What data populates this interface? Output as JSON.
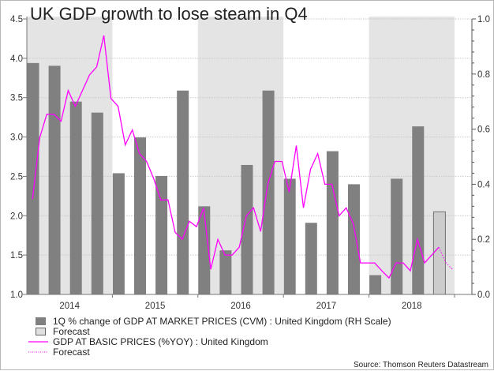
{
  "chart_data": {
    "type": "bar",
    "title": "UK GDP growth to lose steam in Q4",
    "source": "Source: Thomson Reuters Datastream",
    "x_axis": {
      "categories": [
        "2014",
        "2015",
        "2016",
        "2017",
        "2018"
      ],
      "shaded_years": [
        "2014",
        "2016",
        "2018"
      ]
    },
    "left_axis": {
      "ylim": [
        1.0,
        4.5
      ],
      "ticks": [
        "1.0",
        "1.5",
        "2.0",
        "2.5",
        "3.0",
        "3.5",
        "4.0",
        "4.5"
      ]
    },
    "right_axis": {
      "ylim": [
        0.0,
        1.0
      ],
      "ticks": [
        "0.0",
        "0.2",
        "0.4",
        "0.6",
        "0.8",
        "1.0"
      ]
    },
    "grid": "horizontal-dotted",
    "legend_position": "bottom-left",
    "series": [
      {
        "name": "1Q % change of GDP AT MARKET PRICES (CVM) : United Kingdom (RH Scale)",
        "kind": "bar",
        "axis": "right",
        "color": "#808080",
        "quarters": [
          "2014Q1",
          "2014Q2",
          "2014Q3",
          "2014Q4",
          "2015Q1",
          "2015Q2",
          "2015Q3",
          "2015Q4",
          "2016Q1",
          "2016Q2",
          "2016Q3",
          "2016Q4",
          "2017Q1",
          "2017Q2",
          "2017Q3",
          "2017Q4",
          "2018Q1",
          "2018Q2",
          "2018Q3"
        ],
        "values": [
          0.84,
          0.83,
          0.7,
          0.66,
          0.44,
          0.57,
          0.43,
          0.74,
          0.32,
          0.16,
          0.47,
          0.74,
          0.42,
          0.26,
          0.52,
          0.4,
          0.07,
          0.42,
          0.61
        ]
      },
      {
        "name": "Forecast",
        "kind": "bar",
        "axis": "right",
        "color": "#cccccc",
        "quarters": [
          "2018Q4"
        ],
        "values": [
          0.3
        ]
      },
      {
        "name": "GDP AT BASIC PRICES (%YOY) : United Kingdom",
        "kind": "line",
        "axis": "left",
        "color": "#ff00ff",
        "months": [
          "2014-01",
          "2014-02",
          "2014-03",
          "2014-04",
          "2014-05",
          "2014-06",
          "2014-07",
          "2014-08",
          "2014-09",
          "2014-10",
          "2014-11",
          "2014-12",
          "2015-01",
          "2015-02",
          "2015-03",
          "2015-04",
          "2015-05",
          "2015-06",
          "2015-07",
          "2015-08",
          "2015-09",
          "2015-10",
          "2015-11",
          "2015-12",
          "2016-01",
          "2016-02",
          "2016-03",
          "2016-04",
          "2016-05",
          "2016-06",
          "2016-07",
          "2016-08",
          "2016-09",
          "2016-10",
          "2016-11",
          "2016-12",
          "2017-01",
          "2017-02",
          "2017-03",
          "2017-04",
          "2017-05",
          "2017-06",
          "2017-07",
          "2017-08",
          "2017-09",
          "2017-10",
          "2017-11",
          "2017-12",
          "2018-01",
          "2018-02",
          "2018-03",
          "2018-04",
          "2018-05",
          "2018-06",
          "2018-07",
          "2018-08",
          "2018-09",
          "2018-10"
        ],
        "values": [
          2.21,
          2.99,
          3.29,
          3.29,
          3.2,
          3.59,
          3.39,
          3.59,
          3.79,
          3.89,
          4.29,
          3.49,
          3.39,
          2.9,
          3.09,
          2.79,
          2.69,
          2.47,
          2.2,
          2.2,
          1.79,
          1.7,
          1.93,
          1.86,
          2.1,
          1.32,
          1.7,
          1.5,
          1.5,
          1.6,
          2.0,
          2.1,
          1.8,
          2.4,
          2.69,
          2.69,
          2.3,
          2.89,
          2.1,
          2.59,
          2.79,
          2.4,
          2.4,
          2.0,
          2.1,
          1.9,
          1.4,
          1.4,
          1.4,
          1.3,
          1.21,
          1.4,
          1.4,
          1.3,
          1.7,
          1.4,
          1.5,
          1.6
        ],
        "months_note": ""
      },
      {
        "name": "Forecast",
        "kind": "line-dotted",
        "axis": "left",
        "color": "#ff00ff",
        "months": [
          "2018-10",
          "2018-11",
          "2018-12"
        ],
        "values": [
          1.6,
          1.4,
          1.31
        ]
      }
    ],
    "legend": [
      {
        "label": "1Q % change of GDP AT MARKET PRICES (CVM) : United Kingdom (RH Scale)",
        "swatch": "bar",
        "color": "#808080"
      },
      {
        "label": "Forecast",
        "swatch": "bar-outline",
        "color": "#e0e0e0"
      },
      {
        "label": "GDP AT BASIC PRICES (%YOY) : United Kingdom",
        "swatch": "line",
        "color": "#ff00ff"
      },
      {
        "label": "Forecast",
        "swatch": "line-dotted",
        "color": "#ff00ff"
      }
    ]
  }
}
